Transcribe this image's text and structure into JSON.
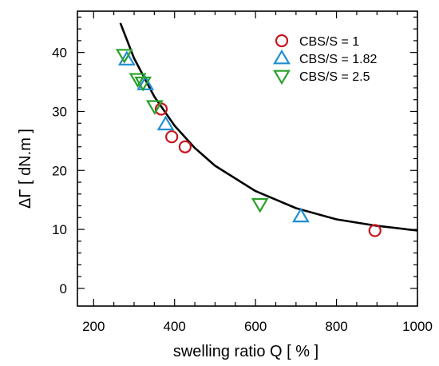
{
  "chart_data": {
    "type": "scatter",
    "xlabel": "swelling ratio Q  [ % ]",
    "ylabel": "ΔΓ  [ dN.m ]",
    "xlim": [
      160,
      1000
    ],
    "ylim": [
      -3,
      47
    ],
    "x_ticks": [
      200,
      400,
      600,
      800,
      1000
    ],
    "y_ticks": [
      0,
      10,
      20,
      30,
      40
    ],
    "grid": false,
    "legend_position": "top-right",
    "series": [
      {
        "name": "CBS/S = 1",
        "marker": "circle",
        "color": "#c8141e",
        "points": [
          [
            367,
            30.4
          ],
          [
            393,
            25.7
          ],
          [
            426,
            24.0
          ],
          [
            895,
            9.8
          ]
        ]
      },
      {
        "name": "CBS/S = 1.82",
        "marker": "triangle-up",
        "color": "#1f8fd2",
        "points": [
          [
            282,
            38.8
          ],
          [
            328,
            34.6
          ],
          [
            378,
            27.8
          ],
          [
            712,
            12.2
          ]
        ]
      },
      {
        "name": "CBS/S = 2.5",
        "marker": "triangle-down",
        "color": "#29a02a",
        "points": [
          [
            276,
            39.6
          ],
          [
            309,
            35.5
          ],
          [
            322,
            34.9
          ],
          [
            351,
            30.9
          ],
          [
            611,
            14.3
          ]
        ]
      }
    ],
    "fit_curve": {
      "color": "#000000",
      "points": [
        [
          266,
          45.0
        ],
        [
          300,
          39.0
        ],
        [
          350,
          32.5
        ],
        [
          400,
          27.6
        ],
        [
          450,
          23.8
        ],
        [
          500,
          20.8
        ],
        [
          600,
          16.5
        ],
        [
          700,
          13.6
        ],
        [
          800,
          11.7
        ],
        [
          900,
          10.6
        ],
        [
          1000,
          9.8
        ]
      ]
    }
  }
}
